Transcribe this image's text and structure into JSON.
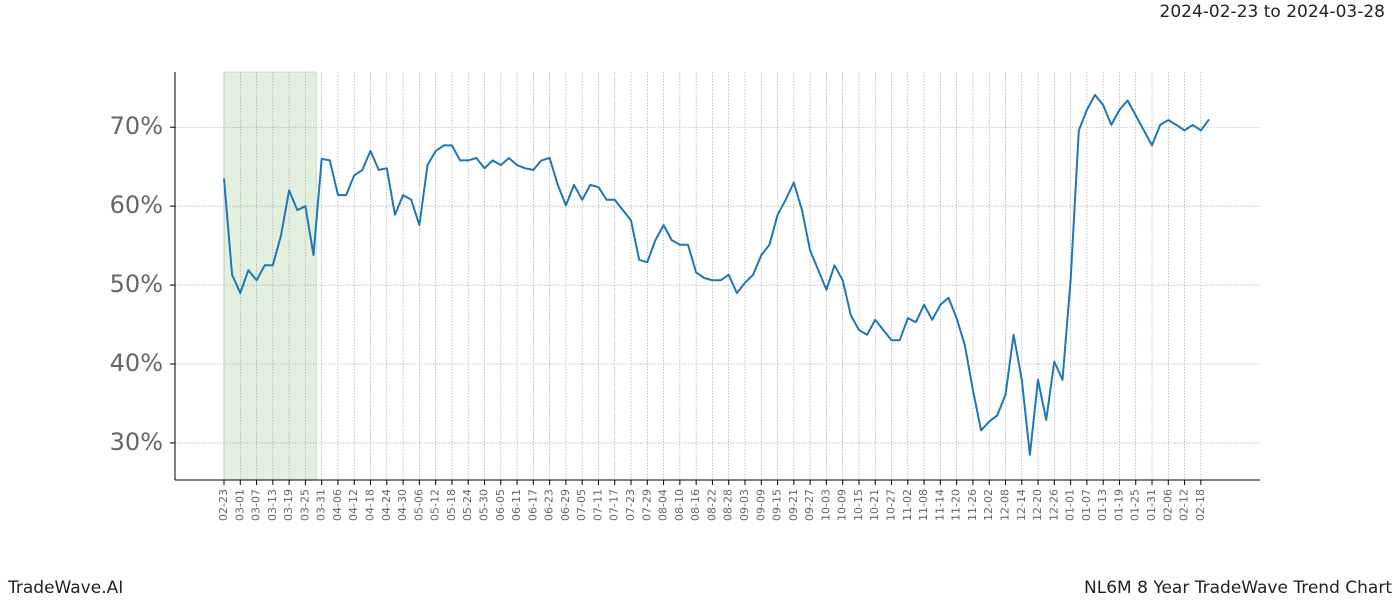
{
  "chart_data": {
    "type": "line",
    "title": "NL6M 8 Year TradeWave Trend Chart",
    "subtitle": "2024-02-23 to 2024-03-28",
    "brand": "TradeWave.AI",
    "highlight_range": [
      "2024-02-23",
      "2024-03-28"
    ],
    "highlight_color": "#e3f0e0",
    "color": "#1f77b4",
    "grid": true,
    "categories": [
      "02-23",
      null,
      "03-01",
      null,
      "03-07",
      null,
      "03-13",
      null,
      "03-19",
      null,
      "03-25",
      null,
      "03-31",
      null,
      "04-06",
      null,
      "04-12",
      null,
      "04-18",
      null,
      "04-24",
      null,
      "04-30",
      null,
      "05-06",
      null,
      "05-12",
      null,
      "05-18",
      null,
      "05-24",
      null,
      "05-30",
      null,
      "06-05",
      null,
      "06-11",
      null,
      "06-17",
      null,
      "06-23",
      null,
      "06-29",
      null,
      "07-05",
      null,
      "07-11",
      null,
      "07-17",
      null,
      "07-23",
      null,
      "07-29",
      null,
      "08-04",
      null,
      "08-10",
      null,
      "08-16",
      null,
      "08-22",
      null,
      "08-28",
      null,
      "09-03",
      null,
      "09-09",
      null,
      "09-15",
      null,
      "09-21",
      null,
      "09-27",
      null,
      "10-03",
      null,
      "10-09",
      null,
      "10-15",
      null,
      "10-21",
      null,
      "10-27",
      null,
      "11-02",
      null,
      "11-08",
      null,
      "11-14",
      null,
      "11-20",
      null,
      "11-26",
      null,
      "12-02",
      null,
      "12-08",
      null,
      "12-14",
      null,
      "12-20",
      null,
      "12-26",
      null,
      "01-01",
      null,
      "01-07",
      null,
      "01-13",
      null,
      "01-19",
      null,
      "01-25",
      null,
      "01-31",
      null,
      "02-06",
      null,
      "02-12",
      null,
      "02-18",
      null
    ],
    "values": [
      63.5,
      51.3,
      49,
      51.9,
      50.6,
      52.5,
      52.5,
      56.3,
      62,
      59.5,
      60,
      53.8,
      66,
      65.8,
      61.4,
      61.4,
      63.9,
      64.6,
      67,
      64.6,
      64.8,
      58.9,
      61.4,
      60.8,
      57.6,
      65.2,
      67,
      67.7,
      67.7,
      65.8,
      65.8,
      66.1,
      64.8,
      65.8,
      65.2,
      66.1,
      65.2,
      64.8,
      64.6,
      65.8,
      66.1,
      62.7,
      60.1,
      62.7,
      60.8,
      62.7,
      62.4,
      60.8,
      60.8,
      59.5,
      58.2,
      53.2,
      52.9,
      55.7,
      57.6,
      55.7,
      55.1,
      55.1,
      51.6,
      50.9,
      50.6,
      50.6,
      51.3,
      49,
      50.3,
      51.3,
      53.8,
      55.1,
      58.9,
      60.8,
      63,
      59.5,
      54.4,
      51.9,
      49.4,
      52.5,
      50.6,
      46.2,
      44.3,
      43.7,
      45.6,
      44.3,
      43,
      43,
      45.8,
      45.3,
      47.5,
      45.6,
      47.5,
      48.4,
      45.8,
      42.4,
      36.7,
      31.6,
      32.7,
      33.5,
      36.1,
      43.7,
      38,
      28.5,
      38,
      32.9,
      40.3,
      38,
      50.6,
      69.6,
      72.2,
      74.1,
      72.8,
      70.3,
      72.2,
      73.4,
      71.5,
      69.6,
      67.7,
      70.3,
      70.9,
      70.3,
      69.6,
      70.3,
      69.6,
      71
    ],
    "ylim": [
      25.3,
      77
    ],
    "yticks": [
      {
        "value": 30,
        "label": "30%"
      },
      {
        "value": 40,
        "label": "40%"
      },
      {
        "value": 50,
        "label": "50%"
      },
      {
        "value": 60,
        "label": "60%"
      },
      {
        "value": 70,
        "label": "70%"
      }
    ]
  }
}
